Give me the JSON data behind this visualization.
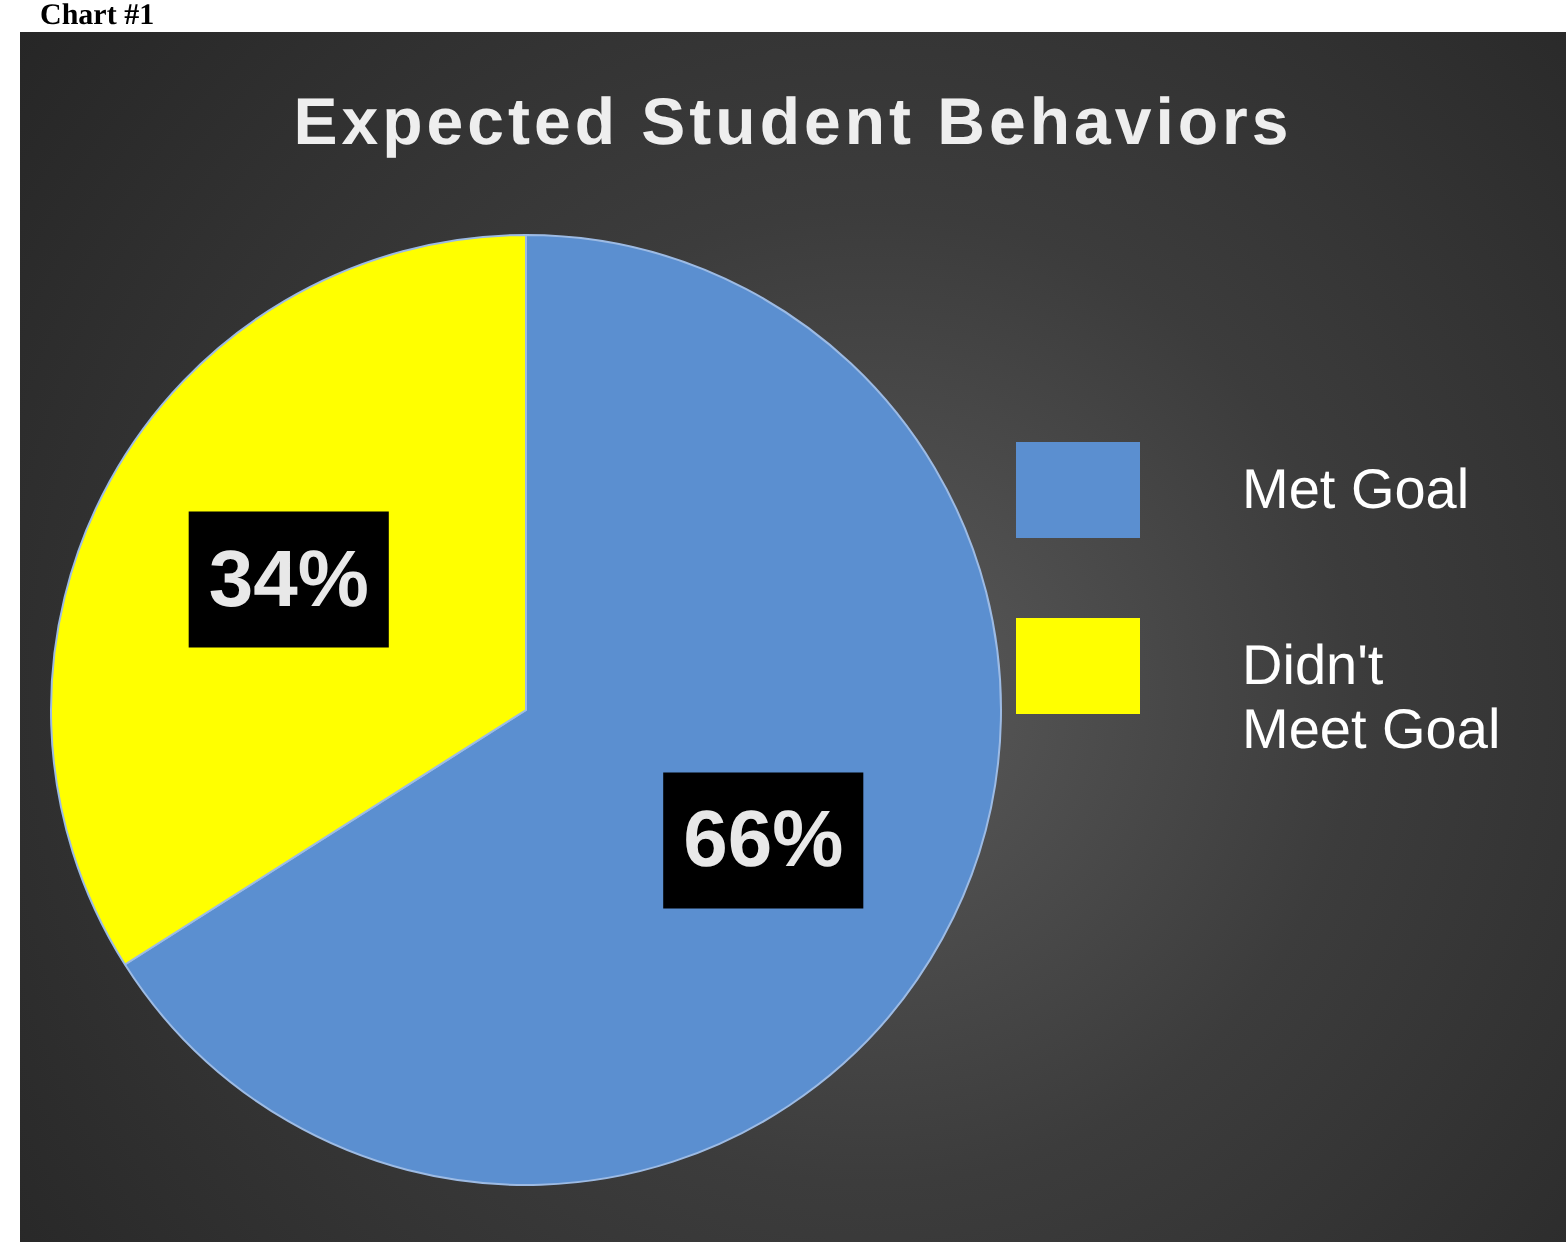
{
  "chart_data": {
    "type": "pie",
    "title": "Expected Student Behaviors",
    "annotations": [
      "Chart #1"
    ],
    "categories": [
      "Met Goal",
      "Didn't Meet Goal"
    ],
    "values": [
      66,
      34
    ],
    "colors": [
      "#5b8fd0",
      "#ffff00"
    ],
    "value_labels": [
      "66%",
      "34%"
    ],
    "legend": "right"
  }
}
